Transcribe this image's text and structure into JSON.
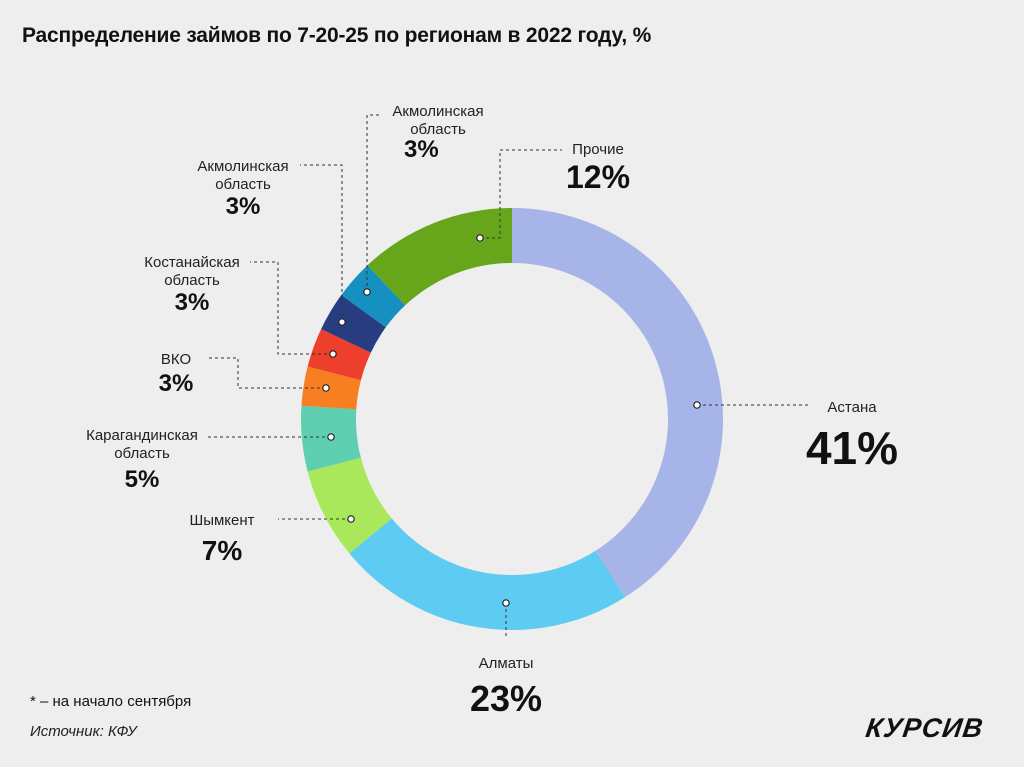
{
  "title": "Распределение займов по 7-20-25 по регионам в 2022 году, %",
  "footnote": "* – на начало сентября",
  "source": "Источник: КФУ",
  "logo": "КУРСИВ",
  "chart_data": {
    "type": "pie",
    "variant": "donut",
    "start": "12 o'clock, clockwise",
    "slices": [
      {
        "label": "Астана",
        "value": 41,
        "value_text": "41%",
        "color": "#a6b4e8",
        "label_lines": [
          "Астана"
        ]
      },
      {
        "label": "Алматы",
        "value": 23,
        "value_text": "23%",
        "color": "#5ecbf2",
        "label_lines": [
          "Алматы"
        ]
      },
      {
        "label": "Шымкент",
        "value": 7,
        "value_text": "7%",
        "color": "#a8e85a",
        "label_lines": [
          "Шымкент"
        ]
      },
      {
        "label": "Карагандинская область",
        "value": 5,
        "value_text": "5%",
        "color": "#5ecfb0",
        "label_lines": [
          "Карагандинская",
          "область"
        ]
      },
      {
        "label": "ВКО",
        "value": 3,
        "value_text": "3%",
        "color": "#f77f22",
        "label_lines": [
          "ВКО"
        ]
      },
      {
        "label": "Костанайская область",
        "value": 3,
        "value_text": "3%",
        "color": "#ee3e2c",
        "label_lines": [
          "Костанайская",
          "область"
        ]
      },
      {
        "label": "Акмолинская область",
        "value": 3,
        "value_text": "3%",
        "color": "#283c80",
        "label_lines": [
          "Акмолинская",
          "область"
        ]
      },
      {
        "label": "Акмолинская область",
        "value": 3,
        "value_text": "3%",
        "color": "#1690c0",
        "label_lines": [
          "Акмолинская",
          "область"
        ]
      },
      {
        "label": "Прочие",
        "value": 12,
        "value_text": "12%",
        "color": "#67a61a",
        "label_lines": [
          "Прочие"
        ]
      }
    ]
  }
}
